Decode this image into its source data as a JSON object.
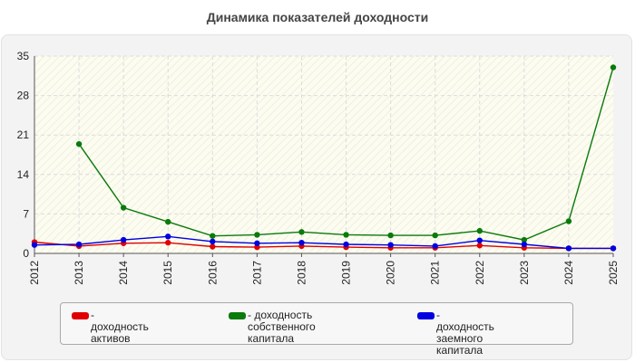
{
  "chart_data": {
    "type": "line",
    "title": "Динамика показателей доходности",
    "xlabel": "",
    "ylabel": "",
    "x": [
      "2012",
      "2013",
      "2014",
      "2015",
      "2016",
      "2017",
      "2018",
      "2019",
      "2020",
      "2021",
      "2022",
      "2023",
      "2024",
      "2025"
    ],
    "ylim": [
      0,
      35
    ],
    "yticks": [
      0,
      7,
      14,
      21,
      28,
      35
    ],
    "grid": true,
    "legend_position": "bottom",
    "series": [
      {
        "name": "- доходность активов",
        "color": "#e00000",
        "values": [
          2.0,
          1.3,
          1.8,
          1.9,
          1.2,
          1.1,
          1.3,
          1.1,
          1.0,
          1.0,
          1.4,
          1.0,
          0.9,
          0.9
        ]
      },
      {
        "name": "- доходность собственного\nкапитала",
        "color": "#0a7a0a",
        "values": [
          null,
          19.4,
          8.1,
          5.6,
          3.1,
          3.3,
          3.8,
          3.3,
          3.2,
          3.2,
          4.0,
          2.4,
          5.7,
          33.0
        ]
      },
      {
        "name": "- доходность заемного\nкапитала",
        "color": "#0000e0",
        "values": [
          1.5,
          1.6,
          2.4,
          3.0,
          2.1,
          1.8,
          1.9,
          1.6,
          1.5,
          1.3,
          2.3,
          1.6,
          0.9,
          0.9
        ]
      }
    ]
  }
}
